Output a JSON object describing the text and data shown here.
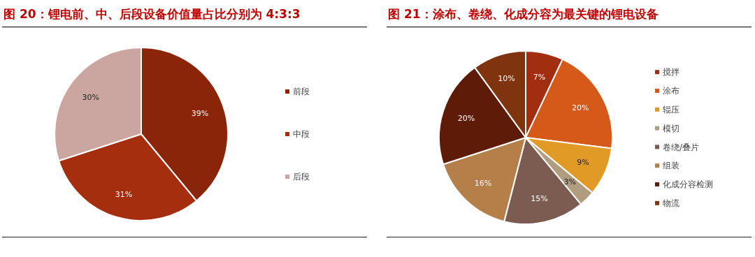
{
  "chart_data": [
    {
      "type": "pie",
      "title": "图 20：锂电前、中、后段设备价值量占比分别为 4:3:3",
      "categories": [
        "前段",
        "中段",
        "后段"
      ],
      "values": [
        39,
        31,
        30
      ],
      "value_labels": [
        "39%",
        "31%",
        "30%"
      ],
      "colors": [
        "#8b2509",
        "#a52e0f",
        "#cba6a0"
      ],
      "legend": "right"
    },
    {
      "type": "pie",
      "title": "图 21：涂布、卷绕、化成分容为最关键的锂电设备",
      "categories": [
        "搅拌",
        "涂布",
        "辊压",
        "模切",
        "卷绕/叠片",
        "组装",
        "化成分容检测",
        "物流"
      ],
      "values": [
        7,
        20,
        9,
        3,
        15,
        16,
        20,
        10
      ],
      "value_labels": [
        "7%",
        "20%",
        "9%",
        "3%",
        "15%",
        "16%",
        "20%",
        "10%"
      ],
      "colors": [
        "#a22e10",
        "#d55a1a",
        "#e29a27",
        "#b09c7f",
        "#7c5c50",
        "#b57f4a",
        "#5e1c08",
        "#80340d"
      ],
      "legend": "right"
    }
  ]
}
